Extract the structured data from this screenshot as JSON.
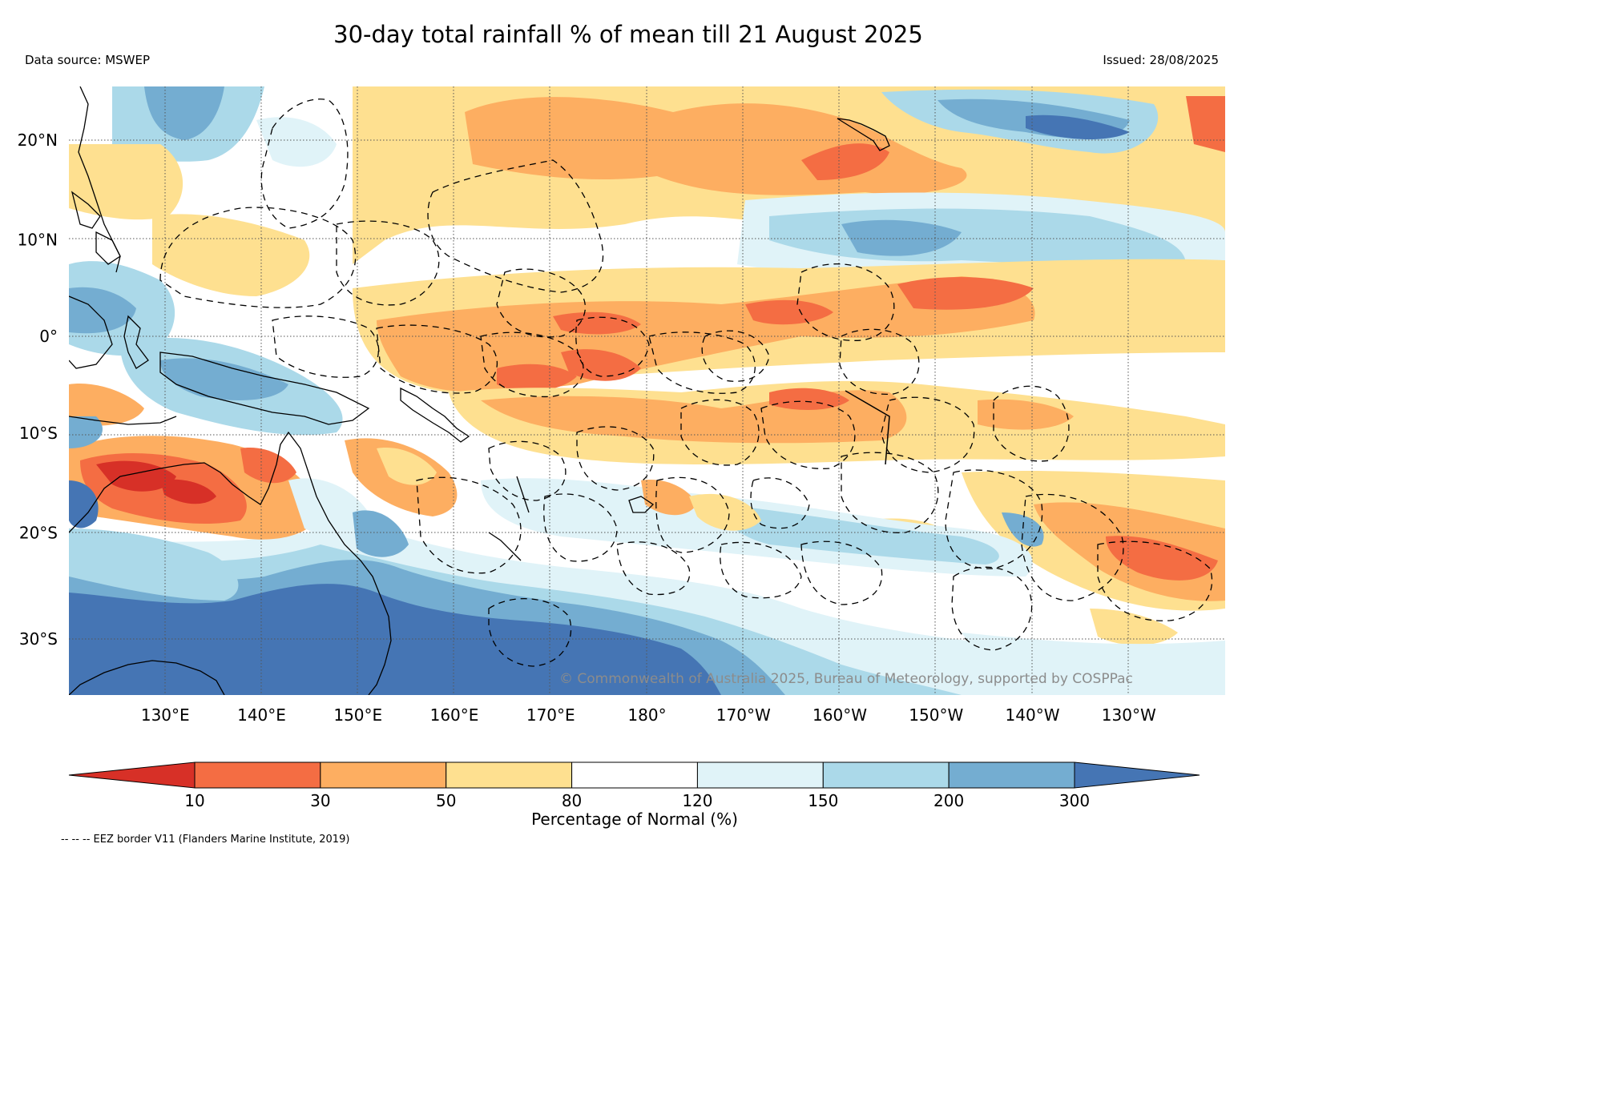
{
  "header": {
    "title": "30-day total rainfall % of mean till 21 August 2025",
    "data_source": "Data source: MSWEP",
    "issued": "Issued: 28/08/2025"
  },
  "map": {
    "extent": {
      "lon_min": 120,
      "lon_max": 240,
      "lat_min": -37,
      "lat_max": 25
    },
    "lon_ticks": [
      {
        "lon": 130,
        "label": "130°E"
      },
      {
        "lon": 140,
        "label": "140°E"
      },
      {
        "lon": 150,
        "label": "150°E"
      },
      {
        "lon": 160,
        "label": "160°E"
      },
      {
        "lon": 170,
        "label": "170°E"
      },
      {
        "lon": 180,
        "label": "180°"
      },
      {
        "lon": 190,
        "label": "170°W"
      },
      {
        "lon": 200,
        "label": "160°W"
      },
      {
        "lon": 210,
        "label": "150°W"
      },
      {
        "lon": 220,
        "label": "140°W"
      },
      {
        "lon": 230,
        "label": "130°W"
      }
    ],
    "lat_ticks": [
      {
        "lat": 20,
        "label": "20°N"
      },
      {
        "lat": 10,
        "label": "10°N"
      },
      {
        "lat": 0,
        "label": "0°"
      },
      {
        "lat": -10,
        "label": "10°S"
      },
      {
        "lat": -20,
        "label": "20°S"
      },
      {
        "lat": -30,
        "label": "30°S"
      }
    ],
    "copyright": "© Commonwealth of Australia 2025, Bureau of Meteorology, supported by COSPPac",
    "icons": [
      "coastline-icon",
      "eez-border-icon"
    ]
  },
  "colorbar": {
    "title": "Percentage of Normal (%)",
    "boundaries": [
      "10",
      "30",
      "50",
      "80",
      "120",
      "150",
      "200",
      "300"
    ],
    "colors": [
      "#d73027",
      "#f46d43",
      "#fdae61",
      "#fee090",
      "#ffffff",
      "#e0f3f8",
      "#abd9e9",
      "#74add1",
      "#4575b4"
    ]
  },
  "footer": {
    "note": "-- -- -- EEZ border V11 (Flanders Marine Institute, 2019)"
  }
}
